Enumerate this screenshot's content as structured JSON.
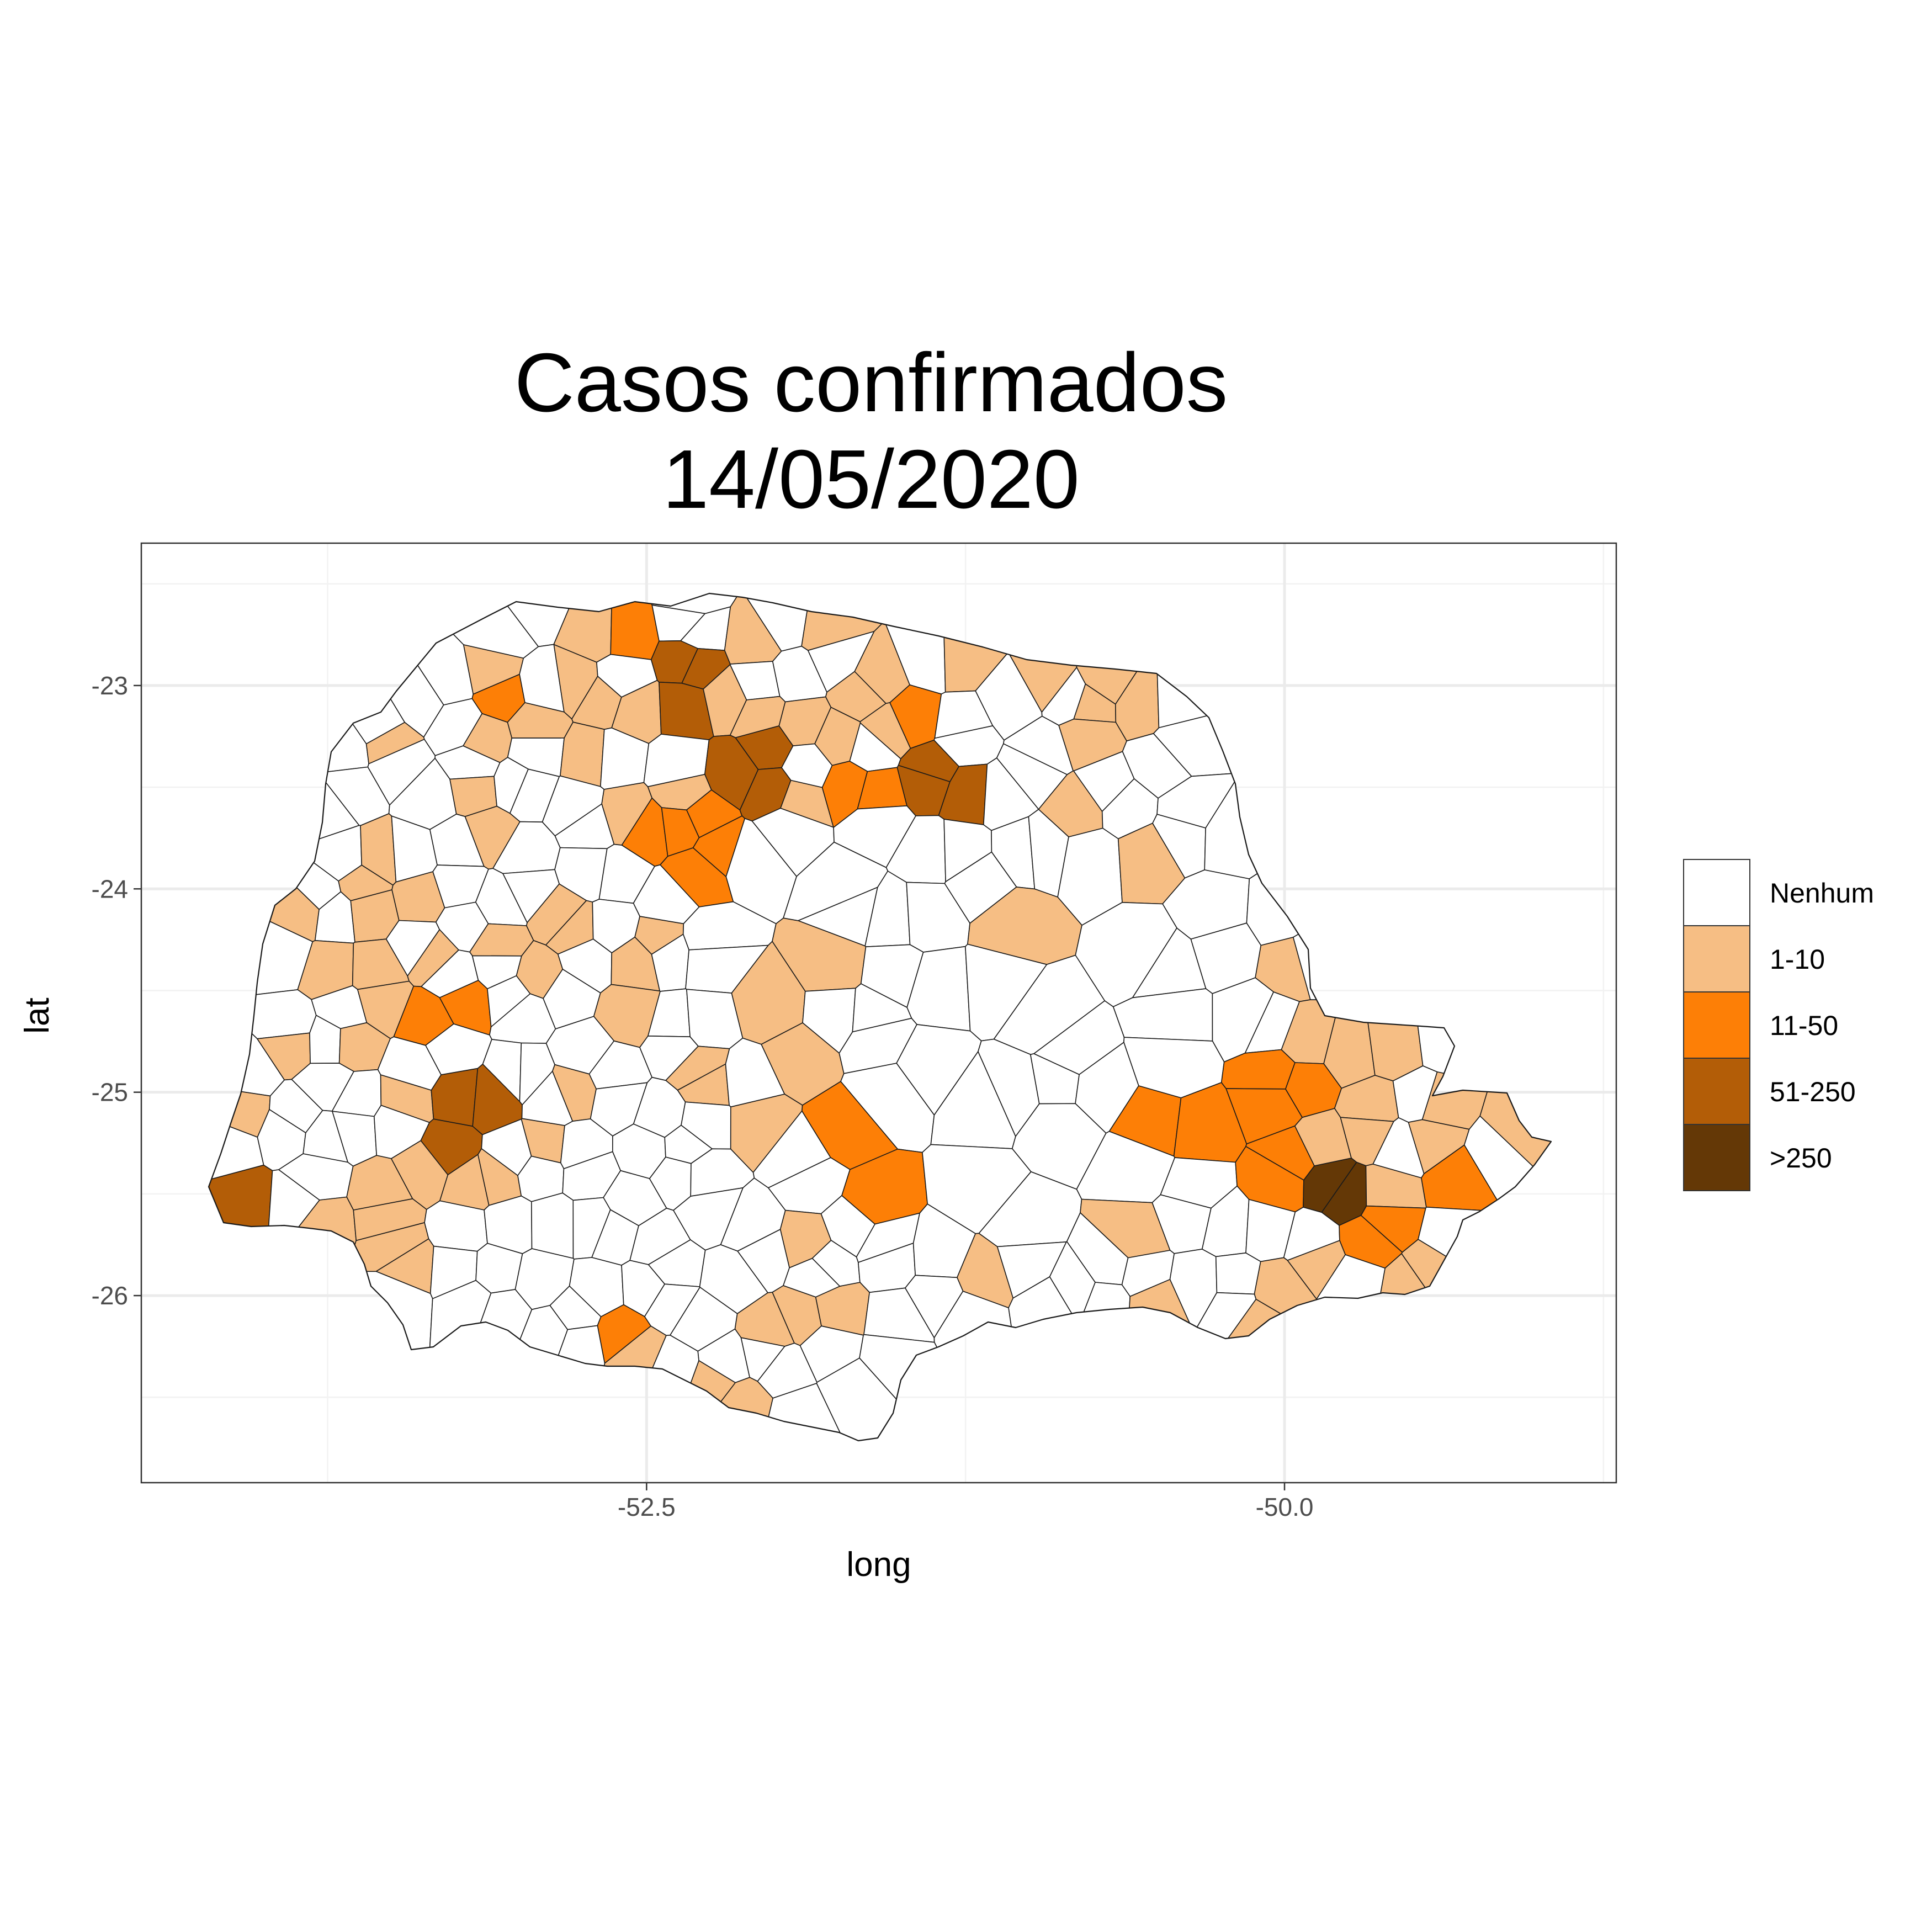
{
  "chart_data": {
    "type": "choropleth",
    "title": "Casos confirmados",
    "subtitle": "14/05/2020",
    "xlabel": "long",
    "ylabel": "lat",
    "xlim": [
      -54.48,
      -48.7
    ],
    "ylim": [
      -26.92,
      -22.3
    ],
    "x_ticks": [
      -52.5,
      -50.0
    ],
    "x_tick_labels": [
      "-52.5",
      "-50.0"
    ],
    "y_ticks": [
      -23,
      -24,
      -25,
      -26
    ],
    "y_tick_labels": [
      "-23",
      "-24",
      "-25",
      "-26"
    ],
    "grid": true,
    "legend": {
      "placement": "right",
      "entries": [
        {
          "label": "Nenhum",
          "color": "#ffffff"
        },
        {
          "label": "1-10",
          "color": "#f6be84"
        },
        {
          "label": "11-50",
          "color": "#fd7f06"
        },
        {
          "label": "51-250",
          "color": "#b35d07"
        },
        {
          "label": ">250",
          "color": "#643806"
        }
      ]
    }
  }
}
